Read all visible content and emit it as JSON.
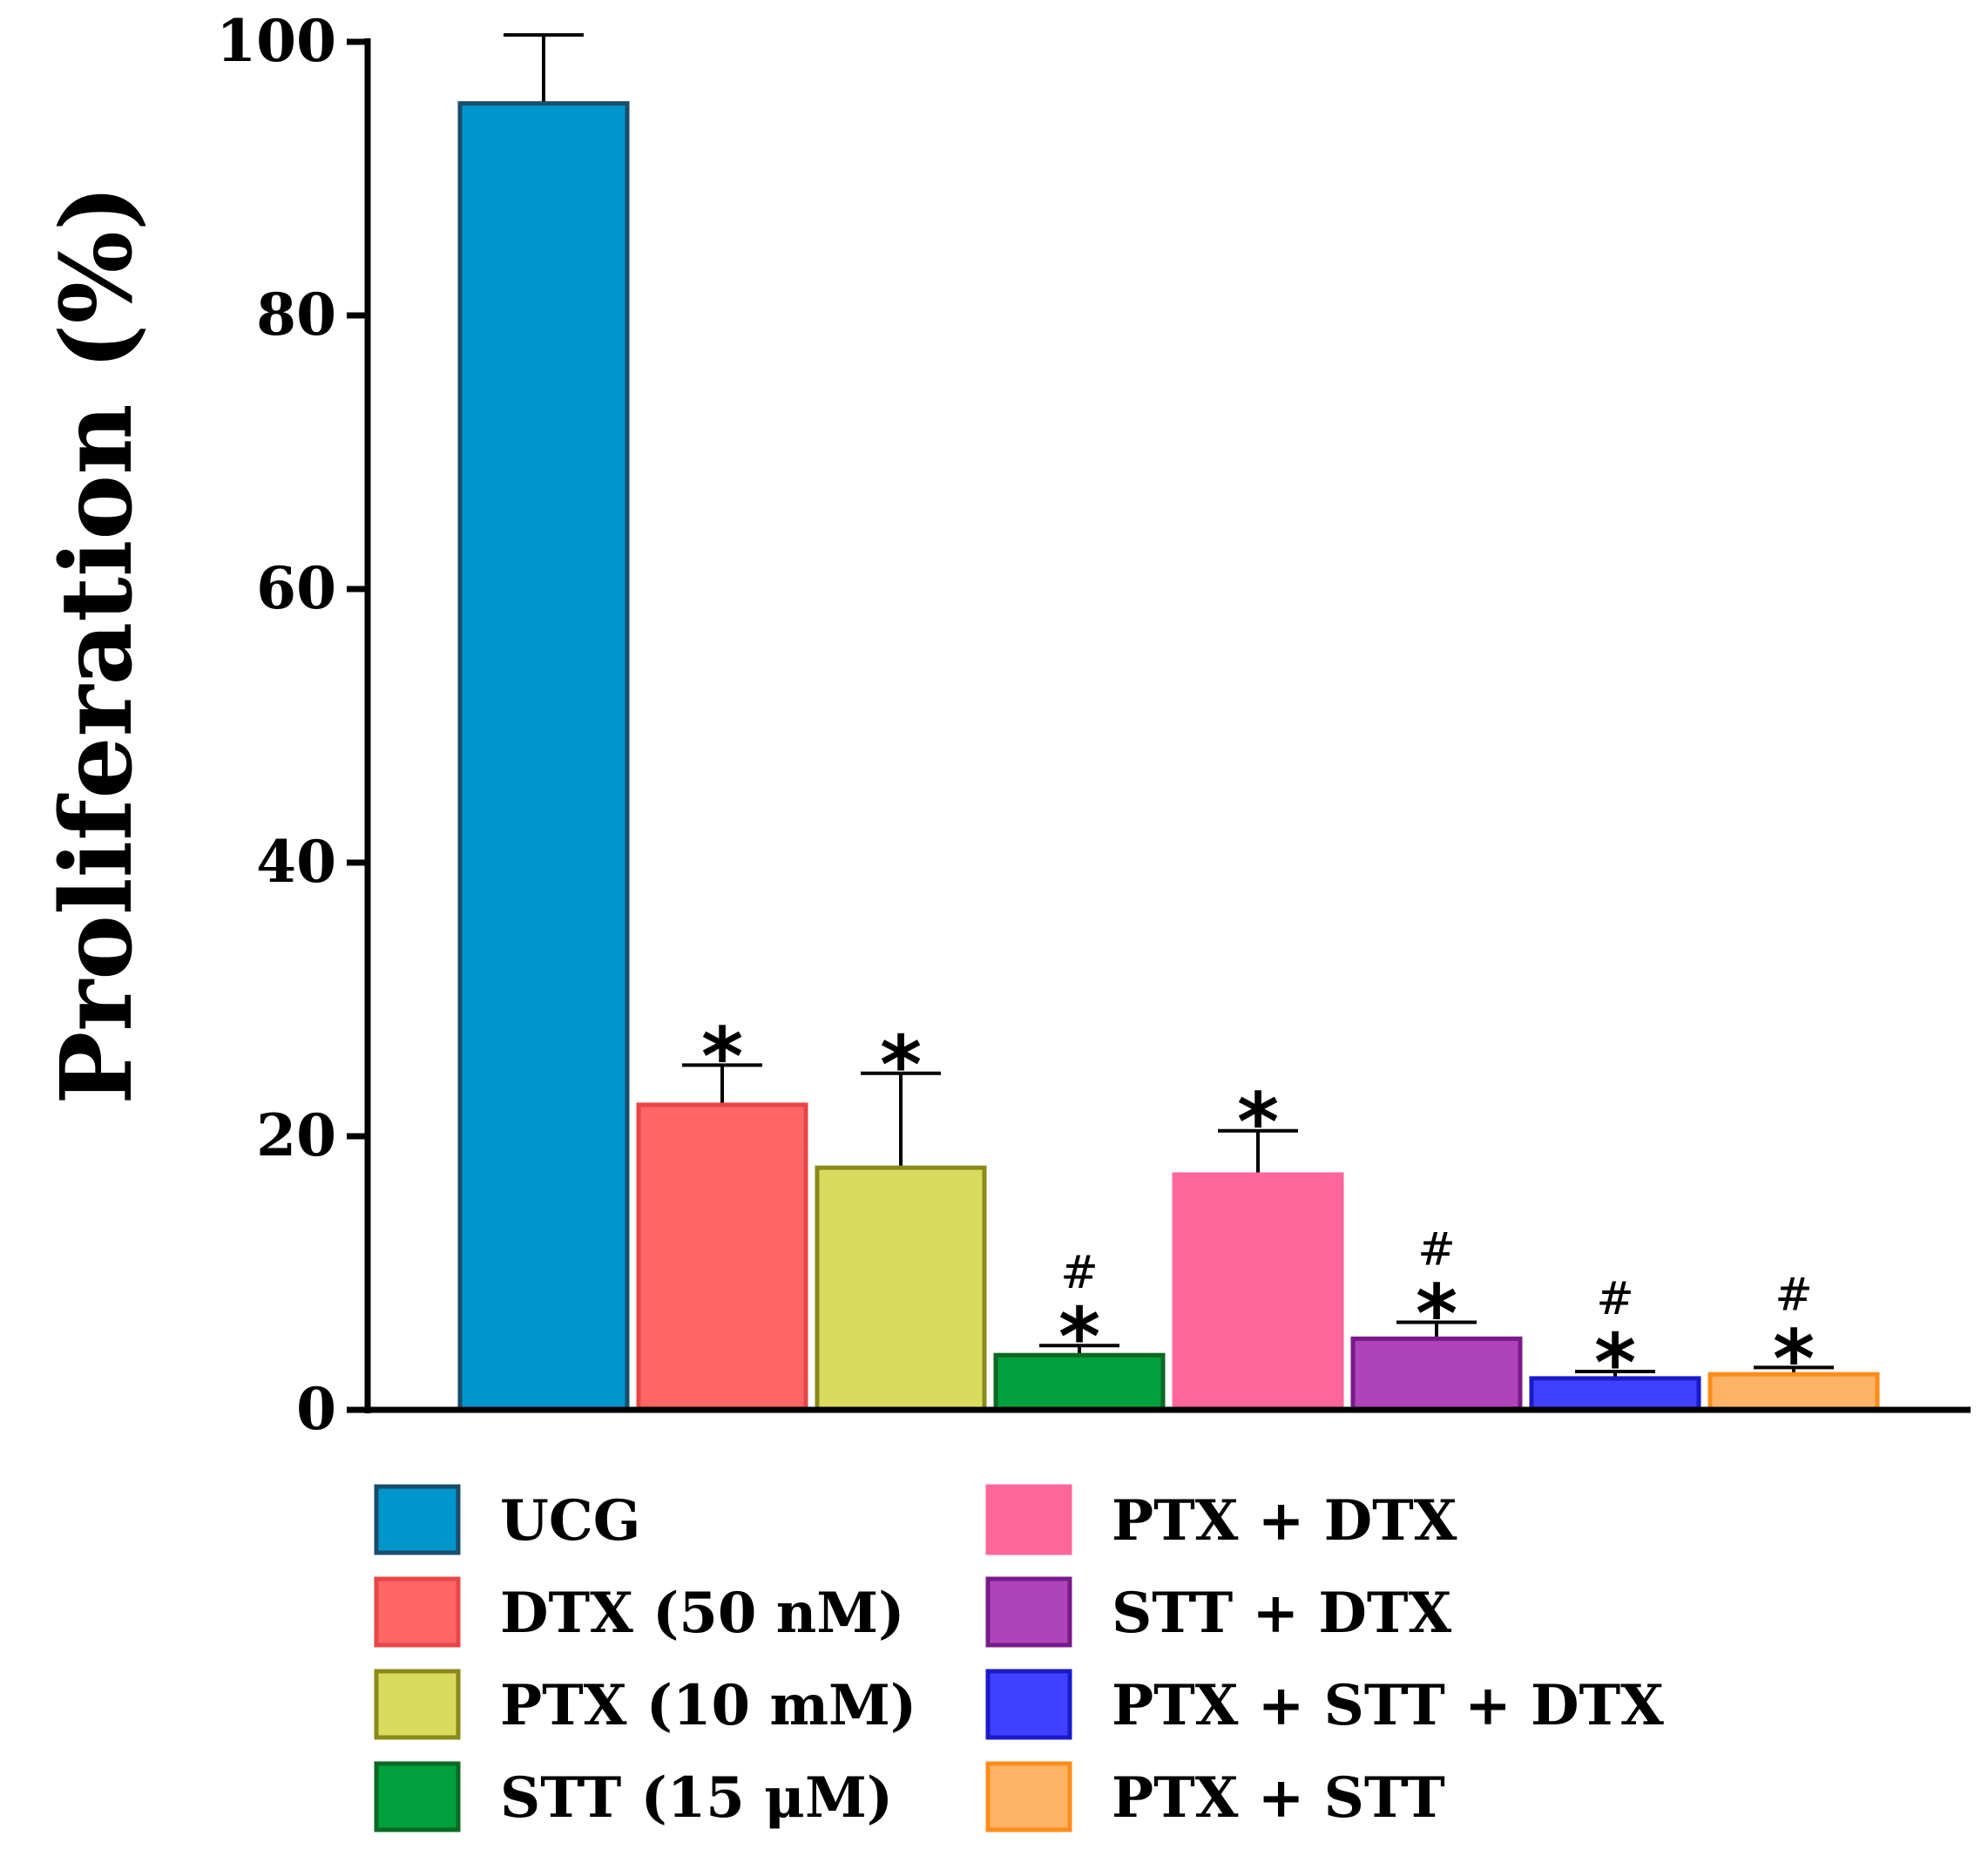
{
  "chart_data": {
    "type": "bar",
    "title": "",
    "xlabel": "",
    "ylabel": "Proliferation (%)",
    "ylim": [
      0,
      100
    ],
    "yticks": [
      0,
      20,
      40,
      60,
      80,
      100
    ],
    "grid": false,
    "legend_position": "bottom",
    "categories": [
      "UCG",
      "DTX (50 nM)",
      "PTX (10 mM)",
      "STT (15 μM)",
      "PTX + DTX",
      "STT + DTX",
      "PTX + STT + DTX",
      "PTX + STT"
    ],
    "values": [
      95.5,
      22.3,
      17.7,
      4.0,
      17.2,
      5.2,
      2.3,
      2.6
    ],
    "errors": [
      5.0,
      2.9,
      6.9,
      0.7,
      3.2,
      1.2,
      0.5,
      0.5
    ],
    "fill_colors": [
      "#0096CC",
      "#FF6666",
      "#DADB5E",
      "#00A03C",
      "#FF6699",
      "#AF44BA",
      "#4040FF",
      "#FFB366"
    ],
    "edge_colors": [
      "#1A4D6B",
      "#E84545",
      "#8A8A1A",
      "#0A6A22",
      "#FF6699",
      "#7A1A8A",
      "#1A1ACC",
      "#FF8C1A"
    ],
    "annotations": [
      {
        "category": "UCG",
        "star": "",
        "hash": ""
      },
      {
        "category": "DTX (50 nM)",
        "star": "*",
        "hash": ""
      },
      {
        "category": "PTX (10 mM)",
        "star": "*",
        "hash": ""
      },
      {
        "category": "STT (15 μM)",
        "star": "*",
        "hash": "#"
      },
      {
        "category": "PTX + DTX",
        "star": "*",
        "hash": ""
      },
      {
        "category": "STT + DTX",
        "star": "*",
        "hash": "#"
      },
      {
        "category": "PTX + STT + DTX",
        "star": "*",
        "hash": "#"
      },
      {
        "category": "PTX + STT",
        "star": "*",
        "hash": "#"
      }
    ]
  }
}
